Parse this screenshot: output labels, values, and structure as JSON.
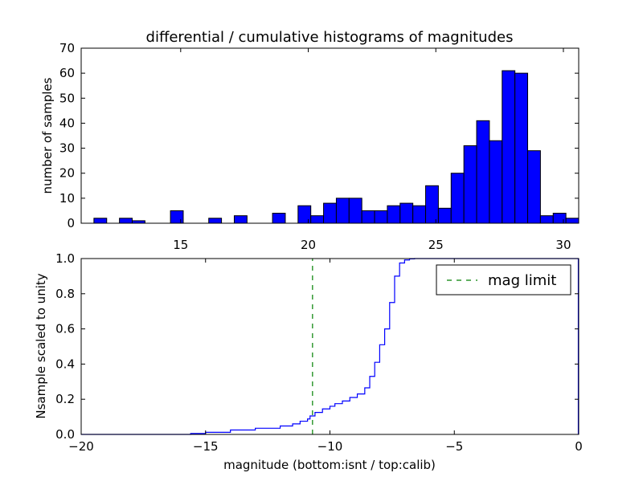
{
  "chart_data": [
    {
      "type": "bar",
      "title": "differential / cumulative histograms of magnitudes",
      "ylabel": "number of samples",
      "xlabel": "",
      "xlim": [
        11.1,
        30.6
      ],
      "ylim": [
        0,
        70
      ],
      "xticks": [
        15,
        20,
        25,
        30
      ],
      "yticks": [
        0,
        10,
        20,
        30,
        40,
        50,
        60,
        70
      ],
      "bin_width": 0.5,
      "bins": [
        {
          "x": 11.6,
          "value": 2
        },
        {
          "x": 12.6,
          "value": 2
        },
        {
          "x": 13.1,
          "value": 1
        },
        {
          "x": 14.6,
          "value": 5
        },
        {
          "x": 16.1,
          "value": 2
        },
        {
          "x": 17.1,
          "value": 3
        },
        {
          "x": 18.6,
          "value": 4
        },
        {
          "x": 19.6,
          "value": 7
        },
        {
          "x": 20.1,
          "value": 3
        },
        {
          "x": 20.6,
          "value": 8
        },
        {
          "x": 21.1,
          "value": 10
        },
        {
          "x": 21.6,
          "value": 10
        },
        {
          "x": 22.1,
          "value": 5
        },
        {
          "x": 22.6,
          "value": 5
        },
        {
          "x": 23.1,
          "value": 7
        },
        {
          "x": 23.6,
          "value": 8
        },
        {
          "x": 24.1,
          "value": 7
        },
        {
          "x": 24.6,
          "value": 15
        },
        {
          "x": 25.1,
          "value": 6
        },
        {
          "x": 25.6,
          "value": 20
        },
        {
          "x": 26.1,
          "value": 31
        },
        {
          "x": 26.6,
          "value": 41
        },
        {
          "x": 27.1,
          "value": 33
        },
        {
          "x": 27.6,
          "value": 61
        },
        {
          "x": 28.1,
          "value": 60
        },
        {
          "x": 28.6,
          "value": 29
        },
        {
          "x": 29.1,
          "value": 3
        },
        {
          "x": 29.6,
          "value": 4
        },
        {
          "x": 30.1,
          "value": 2
        }
      ],
      "bar_color": "#0000ff"
    },
    {
      "type": "line",
      "step": true,
      "ylabel": "Nsample scaled to unity",
      "xlabel": "magnitude (bottom:isnt / top:calib)",
      "xlim": [
        -20,
        0
      ],
      "ylim": [
        0.0,
        1.0
      ],
      "xticks": [
        -20,
        -15,
        -10,
        -5,
        0
      ],
      "ytick_labels": [
        "0.0",
        "0.2",
        "0.4",
        "0.6",
        "0.8",
        "1.0"
      ],
      "series": [
        {
          "color": "#0000ff",
          "x": [
            -20,
            -15.6,
            -15.0,
            -14.0,
            -13.0,
            -12.0,
            -11.5,
            -11.2,
            -10.9,
            -10.8,
            -10.6,
            -10.3,
            -10.0,
            -9.8,
            -9.5,
            -9.2,
            -8.9,
            -8.6,
            -8.4,
            -8.2,
            -8.0,
            -7.8,
            -7.6,
            -7.4,
            -7.2,
            -7.0,
            -6.8,
            -6.6,
            -6.4,
            -6.2,
            -6.0
          ],
          "y": [
            0.0,
            0.005,
            0.012,
            0.025,
            0.035,
            0.048,
            0.06,
            0.075,
            0.088,
            0.105,
            0.125,
            0.145,
            0.16,
            0.175,
            0.19,
            0.21,
            0.23,
            0.265,
            0.33,
            0.41,
            0.51,
            0.6,
            0.75,
            0.9,
            0.975,
            0.992,
            0.998,
            1.0,
            1.0,
            1.0,
            1.0
          ]
        },
        {
          "name": "mag limit",
          "color": "#008000",
          "dashed": true,
          "x": [
            -10.7,
            -10.7
          ],
          "y": [
            0.0,
            1.0
          ]
        }
      ],
      "legend": {
        "location": "top-right",
        "entries": [
          "mag limit"
        ]
      }
    }
  ]
}
